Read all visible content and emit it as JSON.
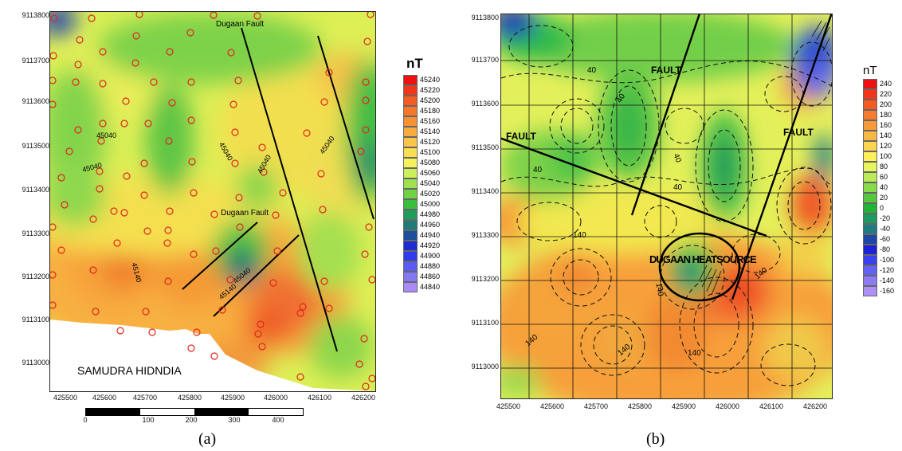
{
  "panel_a": {
    "caption": "(a)",
    "unit": "nT",
    "coast_label": "SAMUDRA HIDNDIA",
    "fault_label_top": "Dugaan Fault",
    "fault_label_mid": "Dugaan Fault",
    "contour_labels": [
      "45040",
      "45040",
      "45040",
      "45040",
      "45140",
      "45040",
      "45140"
    ],
    "y_ticks": [
      "9113800",
      "9113700",
      "9113600",
      "9113500",
      "9113400",
      "9113300",
      "9113200",
      "9113100",
      "9113000"
    ],
    "x_ticks": [
      "425500",
      "425600",
      "425700",
      "425800",
      "425900",
      "426000",
      "426100",
      "426200"
    ],
    "scale_ticks": [
      "0",
      "100",
      "200",
      "300",
      "400"
    ],
    "legend": [
      {
        "value": "45240",
        "color": "#ee1111"
      },
      {
        "value": "45220",
        "color": "#f2361a"
      },
      {
        "value": "45200",
        "color": "#f45a22"
      },
      {
        "value": "45180",
        "color": "#f5782a"
      },
      {
        "value": "45160",
        "color": "#f79234"
      },
      {
        "value": "45140",
        "color": "#f9ab3e"
      },
      {
        "value": "45120",
        "color": "#fbc44a"
      },
      {
        "value": "45100",
        "color": "#fcde55"
      },
      {
        "value": "45080",
        "color": "#f5f25c"
      },
      {
        "value": "45060",
        "color": "#cdf05a"
      },
      {
        "value": "45040",
        "color": "#9fe24f"
      },
      {
        "value": "45020",
        "color": "#6fd242"
      },
      {
        "value": "45000",
        "color": "#3bbd3d"
      },
      {
        "value": "44980",
        "color": "#1f9c59"
      },
      {
        "value": "44960",
        "color": "#207a77"
      },
      {
        "value": "44940",
        "color": "#1f4f9a"
      },
      {
        "value": "44920",
        "color": "#1d2bd0"
      },
      {
        "value": "44900",
        "color": "#2f3cee"
      },
      {
        "value": "44880",
        "color": "#5a5cf2"
      },
      {
        "value": "44860",
        "color": "#8477f4"
      },
      {
        "value": "44840",
        "color": "#a98bf5"
      }
    ]
  },
  "panel_b": {
    "caption": "(b)",
    "unit": "nT",
    "fault_labels": [
      "FAULT",
      "FAULT",
      "FAULT"
    ],
    "heat_label": "DUGAAN HEATSOURCE",
    "contour_labels": [
      "40",
      "40",
      "40",
      "40",
      "40",
      "140",
      "140",
      "140",
      "140",
      "140",
      "140"
    ],
    "y_ticks": [
      "9113800",
      "9113700",
      "9113600",
      "9113500",
      "9113400",
      "9113300",
      "9113200",
      "9113100",
      "9113000"
    ],
    "x_ticks": [
      "425500",
      "425600",
      "425700",
      "425800",
      "425900",
      "426000",
      "426100",
      "426200"
    ],
    "legend": [
      {
        "value": "240",
        "color": "#ee1111"
      },
      {
        "value": "220",
        "color": "#f3361a"
      },
      {
        "value": "200",
        "color": "#f55a22"
      },
      {
        "value": "180",
        "color": "#f77b2c"
      },
      {
        "value": "160",
        "color": "#f99a38"
      },
      {
        "value": "140",
        "color": "#fbb944"
      },
      {
        "value": "120",
        "color": "#fdd650"
      },
      {
        "value": "100",
        "color": "#fdf05a"
      },
      {
        "value": "80",
        "color": "#e8f55c"
      },
      {
        "value": "60",
        "color": "#b9ec55"
      },
      {
        "value": "40",
        "color": "#87db49"
      },
      {
        "value": "20",
        "color": "#55c73e"
      },
      {
        "value": "0",
        "color": "#22b238"
      },
      {
        "value": "-20",
        "color": "#1d9a62"
      },
      {
        "value": "-40",
        "color": "#1f7c80"
      },
      {
        "value": "-60",
        "color": "#1e46a4"
      },
      {
        "value": "-80",
        "color": "#1b22d6"
      },
      {
        "value": "-100",
        "color": "#3a3ff0"
      },
      {
        "value": "-120",
        "color": "#6262f2"
      },
      {
        "value": "-140",
        "color": "#8c7bf4"
      },
      {
        "value": "-160",
        "color": "#ad8ff5"
      }
    ]
  }
}
